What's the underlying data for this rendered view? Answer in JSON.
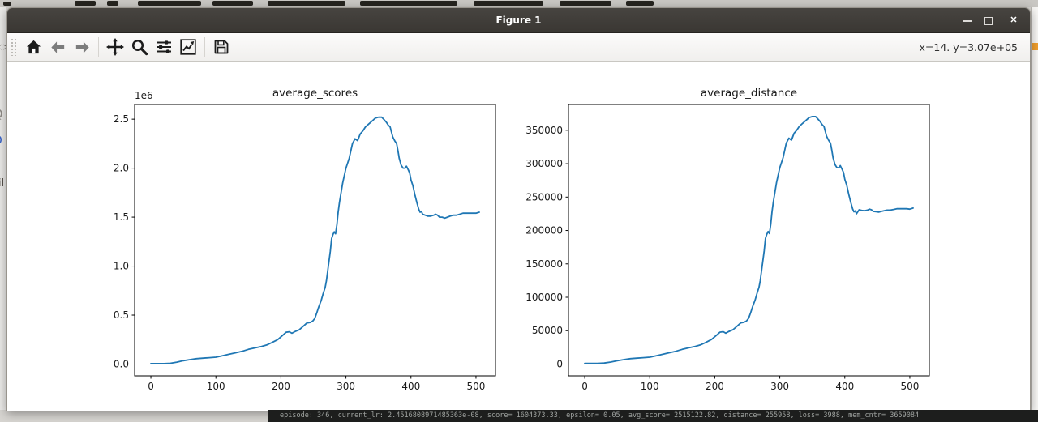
{
  "window": {
    "title": "Figure 1"
  },
  "titlebar": {
    "controls": [
      {
        "name": "minimize"
      },
      {
        "name": "maximize"
      },
      {
        "name": "close"
      }
    ]
  },
  "toolbar": {
    "tools": [
      "home",
      "back",
      "forward",
      "pan",
      "zoom-to-rect",
      "configure-subplots",
      "edit-axis",
      "save"
    ],
    "coords": "x=14. y=3.07e+05"
  },
  "background": {
    "terminal_line": "episode: 346, current_lr: 2.4516808971485363e-08, score= 1604373.33, epsilon= 0.05, avg_score= 2515122.82, distance= 255958, loss= 3988, mem_cntr= 3659084",
    "left_fragments": [
      {
        "text": "<>"
      },
      {
        "text": "Q"
      },
      {
        "text": "O"
      },
      {
        "text": "il"
      }
    ]
  },
  "chart_data": [
    {
      "type": "line",
      "title": "average_scores",
      "line_color": "#1f77b4",
      "xlim": [
        -25,
        530
      ],
      "ylim": [
        -120000,
        2650000
      ],
      "grid": false,
      "legend": null,
      "offset_label": "1e6",
      "xticks": {
        "values": [
          0,
          100,
          200,
          300,
          400,
          500
        ],
        "labels": [
          "0",
          "100",
          "200",
          "300",
          "400",
          "500"
        ]
      },
      "yticks": {
        "values": [
          0,
          500000,
          1000000,
          1500000,
          2000000,
          2500000
        ],
        "labels": [
          "0.0",
          "0.5",
          "1.0",
          "1.5",
          "2.0",
          "2.5"
        ]
      },
      "points": [
        [
          0,
          5000
        ],
        [
          10,
          5000
        ],
        [
          20,
          5000
        ],
        [
          30,
          8000
        ],
        [
          40,
          20000
        ],
        [
          50,
          35000
        ],
        [
          60,
          45000
        ],
        [
          70,
          55000
        ],
        [
          80,
          60000
        ],
        [
          90,
          65000
        ],
        [
          100,
          70000
        ],
        [
          110,
          85000
        ],
        [
          120,
          100000
        ],
        [
          130,
          115000
        ],
        [
          140,
          130000
        ],
        [
          150,
          150000
        ],
        [
          160,
          165000
        ],
        [
          170,
          180000
        ],
        [
          178,
          195000
        ],
        [
          186,
          220000
        ],
        [
          195,
          250000
        ],
        [
          203,
          295000
        ],
        [
          208,
          325000
        ],
        [
          213,
          330000
        ],
        [
          217,
          315000
        ],
        [
          221,
          330000
        ],
        [
          228,
          350000
        ],
        [
          235,
          390000
        ],
        [
          240,
          420000
        ],
        [
          245,
          425000
        ],
        [
          249,
          440000
        ],
        [
          252,
          465000
        ],
        [
          255,
          520000
        ],
        [
          258,
          580000
        ],
        [
          262,
          650000
        ],
        [
          265,
          720000
        ],
        [
          268,
          780000
        ],
        [
          270,
          850000
        ],
        [
          272,
          950000
        ],
        [
          274,
          1050000
        ],
        [
          276,
          1150000
        ],
        [
          278,
          1280000
        ],
        [
          280,
          1320000
        ],
        [
          282,
          1350000
        ],
        [
          284,
          1330000
        ],
        [
          286,
          1420000
        ],
        [
          288,
          1550000
        ],
        [
          290,
          1650000
        ],
        [
          295,
          1850000
        ],
        [
          300,
          2000000
        ],
        [
          305,
          2100000
        ],
        [
          310,
          2250000
        ],
        [
          314,
          2300000
        ],
        [
          318,
          2280000
        ],
        [
          322,
          2350000
        ],
        [
          326,
          2380000
        ],
        [
          330,
          2420000
        ],
        [
          335,
          2450000
        ],
        [
          340,
          2480000
        ],
        [
          345,
          2510000
        ],
        [
          350,
          2520000
        ],
        [
          355,
          2520000
        ],
        [
          358,
          2500000
        ],
        [
          362,
          2470000
        ],
        [
          365,
          2440000
        ],
        [
          368,
          2420000
        ],
        [
          370,
          2370000
        ],
        [
          372,
          2320000
        ],
        [
          375,
          2280000
        ],
        [
          378,
          2250000
        ],
        [
          380,
          2180000
        ],
        [
          382,
          2100000
        ],
        [
          385,
          2030000
        ],
        [
          388,
          2000000
        ],
        [
          391,
          2000000
        ],
        [
          393,
          2020000
        ],
        [
          396,
          1980000
        ],
        [
          398,
          1950000
        ],
        [
          400,
          1880000
        ],
        [
          403,
          1820000
        ],
        [
          406,
          1730000
        ],
        [
          409,
          1650000
        ],
        [
          412,
          1580000
        ],
        [
          414,
          1550000
        ],
        [
          416,
          1560000
        ],
        [
          418,
          1530000
        ],
        [
          422,
          1520000
        ],
        [
          426,
          1510000
        ],
        [
          430,
          1510000
        ],
        [
          435,
          1520000
        ],
        [
          438,
          1530000
        ],
        [
          441,
          1520000
        ],
        [
          444,
          1500000
        ],
        [
          448,
          1500000
        ],
        [
          452,
          1490000
        ],
        [
          456,
          1500000
        ],
        [
          460,
          1510000
        ],
        [
          465,
          1520000
        ],
        [
          470,
          1520000
        ],
        [
          475,
          1530000
        ],
        [
          480,
          1540000
        ],
        [
          485,
          1540000
        ],
        [
          490,
          1540000
        ],
        [
          495,
          1540000
        ],
        [
          500,
          1540000
        ],
        [
          505,
          1550000
        ]
      ]
    },
    {
      "type": "line",
      "title": "average_distance",
      "line_color": "#1f77b4",
      "xlim": [
        -25,
        530
      ],
      "ylim": [
        -17600,
        388600
      ],
      "grid": false,
      "legend": null,
      "offset_label": null,
      "xticks": {
        "values": [
          0,
          100,
          200,
          300,
          400,
          500
        ],
        "labels": [
          "0",
          "100",
          "200",
          "300",
          "400",
          "500"
        ]
      },
      "yticks": {
        "values": [
          0,
          50000,
          100000,
          150000,
          200000,
          250000,
          300000,
          350000
        ],
        "labels": [
          "0",
          "50000",
          "100000",
          "150000",
          "200000",
          "250000",
          "300000",
          "350000"
        ]
      },
      "points": [
        [
          0,
          1000
        ],
        [
          10,
          1000
        ],
        [
          20,
          1000
        ],
        [
          30,
          1500
        ],
        [
          40,
          3000
        ],
        [
          50,
          5000
        ],
        [
          60,
          6600
        ],
        [
          70,
          8100
        ],
        [
          80,
          8800
        ],
        [
          90,
          9600
        ],
        [
          100,
          10300
        ],
        [
          110,
          12500
        ],
        [
          120,
          14700
        ],
        [
          130,
          16900
        ],
        [
          140,
          19100
        ],
        [
          150,
          22100
        ],
        [
          160,
          24300
        ],
        [
          170,
          26500
        ],
        [
          178,
          28700
        ],
        [
          186,
          32300
        ],
        [
          195,
          36800
        ],
        [
          203,
          43400
        ],
        [
          208,
          47800
        ],
        [
          213,
          48500
        ],
        [
          217,
          46300
        ],
        [
          221,
          48500
        ],
        [
          228,
          51500
        ],
        [
          235,
          57300
        ],
        [
          240,
          61700
        ],
        [
          245,
          62500
        ],
        [
          249,
          64700
        ],
        [
          252,
          68400
        ],
        [
          255,
          76400
        ],
        [
          258,
          85300
        ],
        [
          262,
          95600
        ],
        [
          265,
          105800
        ],
        [
          268,
          114700
        ],
        [
          270,
          125000
        ],
        [
          272,
          139700
        ],
        [
          274,
          154400
        ],
        [
          276,
          169100
        ],
        [
          278,
          188200
        ],
        [
          280,
          194000
        ],
        [
          282,
          198500
        ],
        [
          284,
          195500
        ],
        [
          286,
          208700
        ],
        [
          288,
          227900
        ],
        [
          290,
          242600
        ],
        [
          295,
          272000
        ],
        [
          300,
          294000
        ],
        [
          305,
          308700
        ],
        [
          310,
          330800
        ],
        [
          314,
          338100
        ],
        [
          318,
          335200
        ],
        [
          322,
          345500
        ],
        [
          326,
          349900
        ],
        [
          330,
          355700
        ],
        [
          335,
          360200
        ],
        [
          340,
          364600
        ],
        [
          345,
          369000
        ],
        [
          350,
          370500
        ],
        [
          355,
          370500
        ],
        [
          358,
          367500
        ],
        [
          362,
          363100
        ],
        [
          365,
          358700
        ],
        [
          368,
          355800
        ],
        [
          370,
          348400
        ],
        [
          372,
          341100
        ],
        [
          375,
          335200
        ],
        [
          378,
          330800
        ],
        [
          380,
          320500
        ],
        [
          382,
          308700
        ],
        [
          385,
          298500
        ],
        [
          388,
          294000
        ],
        [
          391,
          294000
        ],
        [
          393,
          297000
        ],
        [
          396,
          291100
        ],
        [
          398,
          286700
        ],
        [
          400,
          276400
        ],
        [
          403,
          267600
        ],
        [
          406,
          254300
        ],
        [
          409,
          242600
        ],
        [
          412,
          232300
        ],
        [
          414,
          227900
        ],
        [
          416,
          229400
        ],
        [
          418,
          225000
        ],
        [
          422,
          231000
        ],
        [
          426,
          230000
        ],
        [
          430,
          229500
        ],
        [
          435,
          230500
        ],
        [
          438,
          232000
        ],
        [
          441,
          231000
        ],
        [
          444,
          228500
        ],
        [
          448,
          228000
        ],
        [
          452,
          227500
        ],
        [
          456,
          228500
        ],
        [
          460,
          229500
        ],
        [
          465,
          230500
        ],
        [
          470,
          230500
        ],
        [
          475,
          231500
        ],
        [
          480,
          232500
        ],
        [
          485,
          232500
        ],
        [
          490,
          232500
        ],
        [
          495,
          232500
        ],
        [
          500,
          232000
        ],
        [
          505,
          233500
        ]
      ]
    }
  ]
}
